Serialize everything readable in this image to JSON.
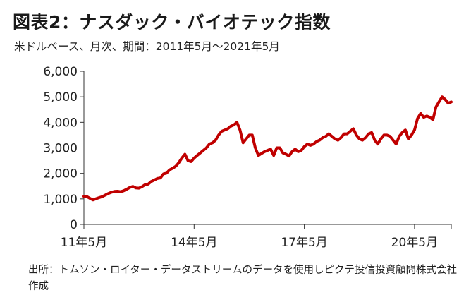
{
  "header": {
    "title": "図表2：ナスダック・バイオテック指数",
    "subtitle": "米ドルベース、月次、期間：2011年5月～2021年5月"
  },
  "source_note": "出所：トムソン・ロイター・データストリームのデータを使用しピクテ投信投資顧問株式会社作成",
  "chart_data": {
    "type": "line",
    "title": "図表2：ナスダック・バイオテック指数",
    "subtitle": "米ドルベース、月次、期間：2011年5月～2021年5月",
    "xlabel": "",
    "ylabel": "",
    "ylim": [
      0,
      6000
    ],
    "yticks": [
      0,
      1000,
      2000,
      3000,
      4000,
      5000,
      6000
    ],
    "ytick_labels": [
      "0",
      "1,000",
      "2,000",
      "3,000",
      "4,000",
      "5,000",
      "6,000"
    ],
    "xticks": [
      "2011-05",
      "2014-05",
      "2017-05",
      "2020-05"
    ],
    "xtick_labels": [
      "11年5月",
      "14年5月",
      "17年5月",
      "20年5月"
    ],
    "x_range": [
      "2011-05",
      "2021-05"
    ],
    "grid": false,
    "line_color": "#c00000",
    "series": [
      {
        "x": [
          "2011-05",
          "2011-06",
          "2011-07",
          "2011-08",
          "2011-09",
          "2011-10",
          "2011-11",
          "2011-12",
          "2012-01",
          "2012-02",
          "2012-03",
          "2012-04",
          "2012-05",
          "2012-06",
          "2012-07",
          "2012-08",
          "2012-09",
          "2012-10",
          "2012-11",
          "2012-12",
          "2013-01",
          "2013-02",
          "2013-03",
          "2013-04",
          "2013-05",
          "2013-06",
          "2013-07",
          "2013-08",
          "2013-09",
          "2013-10",
          "2013-11",
          "2013-12",
          "2014-01",
          "2014-02",
          "2014-03",
          "2014-04",
          "2014-05",
          "2014-06",
          "2014-07",
          "2014-08",
          "2014-09",
          "2014-10",
          "2014-11",
          "2014-12",
          "2015-01",
          "2015-02",
          "2015-03",
          "2015-04",
          "2015-05",
          "2015-06",
          "2015-07",
          "2015-08",
          "2015-09",
          "2015-10",
          "2015-11",
          "2015-12",
          "2016-01",
          "2016-02",
          "2016-03",
          "2016-04",
          "2016-05",
          "2016-06",
          "2016-07",
          "2016-08",
          "2016-09",
          "2016-10",
          "2016-11",
          "2016-12",
          "2017-01",
          "2017-02",
          "2017-03",
          "2017-04",
          "2017-05",
          "2017-06",
          "2017-07",
          "2017-08",
          "2017-09",
          "2017-10",
          "2017-11",
          "2017-12",
          "2018-01",
          "2018-02",
          "2018-03",
          "2018-04",
          "2018-05",
          "2018-06",
          "2018-07",
          "2018-08",
          "2018-09",
          "2018-10",
          "2018-11",
          "2018-12",
          "2019-01",
          "2019-02",
          "2019-03",
          "2019-04",
          "2019-05",
          "2019-06",
          "2019-07",
          "2019-08",
          "2019-09",
          "2019-10",
          "2019-11",
          "2019-12",
          "2020-01",
          "2020-02",
          "2020-03",
          "2020-04",
          "2020-05",
          "2020-06",
          "2020-07",
          "2020-08",
          "2020-09",
          "2020-10",
          "2020-11",
          "2020-12",
          "2021-01",
          "2021-02",
          "2021-03",
          "2021-04",
          "2021-05"
        ],
        "values": [
          1100,
          1090,
          1020,
          960,
          1010,
          1050,
          1090,
          1150,
          1210,
          1260,
          1290,
          1300,
          1280,
          1320,
          1380,
          1450,
          1490,
          1430,
          1420,
          1480,
          1560,
          1580,
          1680,
          1740,
          1800,
          1820,
          1980,
          2010,
          2140,
          2200,
          2280,
          2420,
          2600,
          2750,
          2500,
          2460,
          2600,
          2700,
          2800,
          2900,
          3000,
          3150,
          3200,
          3300,
          3500,
          3650,
          3700,
          3750,
          3850,
          3900,
          4000,
          3700,
          3200,
          3350,
          3500,
          3500,
          3000,
          2700,
          2780,
          2850,
          2900,
          2950,
          2700,
          3000,
          3000,
          2800,
          2750,
          2680,
          2850,
          2950,
          2850,
          2900,
          3050,
          3150,
          3100,
          3150,
          3250,
          3300,
          3400,
          3450,
          3550,
          3450,
          3350,
          3300,
          3400,
          3550,
          3550,
          3650,
          3750,
          3500,
          3350,
          3300,
          3400,
          3550,
          3600,
          3300,
          3150,
          3350,
          3500,
          3500,
          3450,
          3300,
          3150,
          3450,
          3600,
          3700,
          3350,
          3500,
          3700,
          4150,
          4350,
          4200,
          4250,
          4200,
          4100,
          4600,
          4800,
          5000,
          4900,
          4750,
          4800
        ]
      }
    ]
  }
}
